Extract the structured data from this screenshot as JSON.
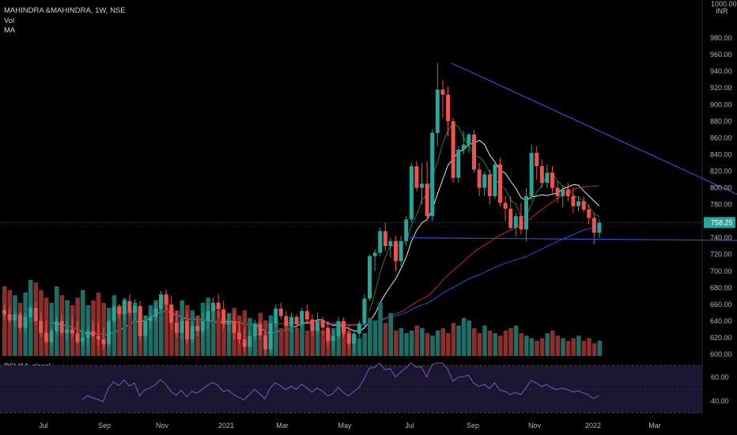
{
  "header": {
    "symbol_line": "MAHINDRA &MAHINDRA, 1W, NSE",
    "vol_label": "Vol",
    "ma_label": "MA"
  },
  "price_axis": {
    "unit": "INR",
    "top_label": "1000.00",
    "ticks": [
      980,
      960,
      940,
      920,
      900,
      880,
      860,
      840,
      820,
      800,
      780,
      760,
      740,
      720,
      700,
      680,
      660,
      640,
      620,
      600
    ],
    "current_price": 758.25,
    "current_label": "758.25"
  },
  "time_axis": {
    "labels": [
      "Jul",
      "Sep",
      "Nov",
      "2021",
      "Mar",
      "May",
      "Jul",
      "Sep",
      "Nov",
      "2022",
      "Mar"
    ]
  },
  "rsi": {
    "label": "RSI (14, close)",
    "levels": [
      "60.00",
      "40.00"
    ],
    "upper_band": 70,
    "lower_band": 30
  },
  "colors": {
    "up": "#26a69a",
    "down": "#ef5350",
    "vol_up": "#1f6e66",
    "vol_down": "#8b2f2e",
    "trendline": "#2f4fd8",
    "ma_white": "#e8e8e8",
    "ma_green": "#2e7d32",
    "ma_red": "#c62828",
    "ma_blue": "#2f4fd8",
    "rsi": "#7e57c2",
    "price_tag": "#26a69a"
  },
  "chart_data": {
    "type": "candlestick",
    "title": "MAHINDRA &MAHINDRA, 1W, NSE",
    "ylim": [
      600,
      1000
    ],
    "candles": [
      {
        "o": 653,
        "h": 660,
        "l": 642,
        "c": 648
      },
      {
        "o": 648,
        "h": 655,
        "l": 638,
        "c": 641
      },
      {
        "o": 641,
        "h": 652,
        "l": 634,
        "c": 648
      },
      {
        "o": 648,
        "h": 651,
        "l": 628,
        "c": 632
      },
      {
        "o": 632,
        "h": 650,
        "l": 625,
        "c": 645
      },
      {
        "o": 645,
        "h": 660,
        "l": 640,
        "c": 656
      },
      {
        "o": 656,
        "h": 663,
        "l": 636,
        "c": 640
      },
      {
        "o": 640,
        "h": 650,
        "l": 621,
        "c": 626
      },
      {
        "o": 626,
        "h": 640,
        "l": 611,
        "c": 615
      },
      {
        "o": 615,
        "h": 632,
        "l": 610,
        "c": 628
      },
      {
        "o": 628,
        "h": 646,
        "l": 625,
        "c": 640
      },
      {
        "o": 640,
        "h": 648,
        "l": 622,
        "c": 626
      },
      {
        "o": 626,
        "h": 640,
        "l": 618,
        "c": 630
      },
      {
        "o": 630,
        "h": 645,
        "l": 620,
        "c": 625
      },
      {
        "o": 625,
        "h": 640,
        "l": 612,
        "c": 615
      },
      {
        "o": 615,
        "h": 630,
        "l": 610,
        "c": 620
      },
      {
        "o": 620,
        "h": 633,
        "l": 610,
        "c": 628
      },
      {
        "o": 628,
        "h": 640,
        "l": 618,
        "c": 622
      },
      {
        "o": 622,
        "h": 638,
        "l": 610,
        "c": 618
      },
      {
        "o": 618,
        "h": 632,
        "l": 606,
        "c": 612
      },
      {
        "o": 612,
        "h": 642,
        "l": 608,
        "c": 640
      },
      {
        "o": 640,
        "h": 660,
        "l": 636,
        "c": 657
      },
      {
        "o": 657,
        "h": 660,
        "l": 642,
        "c": 648
      },
      {
        "o": 648,
        "h": 668,
        "l": 640,
        "c": 664
      },
      {
        "o": 664,
        "h": 672,
        "l": 646,
        "c": 650
      },
      {
        "o": 650,
        "h": 666,
        "l": 640,
        "c": 658
      },
      {
        "o": 658,
        "h": 664,
        "l": 616,
        "c": 622
      },
      {
        "o": 622,
        "h": 646,
        "l": 616,
        "c": 640
      },
      {
        "o": 640,
        "h": 650,
        "l": 630,
        "c": 645
      },
      {
        "o": 645,
        "h": 662,
        "l": 640,
        "c": 655
      },
      {
        "o": 655,
        "h": 676,
        "l": 650,
        "c": 672
      },
      {
        "o": 672,
        "h": 678,
        "l": 652,
        "c": 660
      },
      {
        "o": 660,
        "h": 670,
        "l": 630,
        "c": 638
      },
      {
        "o": 638,
        "h": 652,
        "l": 620,
        "c": 626
      },
      {
        "o": 626,
        "h": 646,
        "l": 618,
        "c": 640
      },
      {
        "o": 640,
        "h": 650,
        "l": 612,
        "c": 618
      },
      {
        "o": 618,
        "h": 640,
        "l": 614,
        "c": 634
      },
      {
        "o": 634,
        "h": 646,
        "l": 622,
        "c": 628
      },
      {
        "o": 628,
        "h": 650,
        "l": 620,
        "c": 640
      },
      {
        "o": 640,
        "h": 660,
        "l": 630,
        "c": 652
      },
      {
        "o": 652,
        "h": 668,
        "l": 640,
        "c": 662
      },
      {
        "o": 662,
        "h": 672,
        "l": 644,
        "c": 654
      },
      {
        "o": 654,
        "h": 664,
        "l": 630,
        "c": 636
      },
      {
        "o": 636,
        "h": 648,
        "l": 626,
        "c": 640
      },
      {
        "o": 640,
        "h": 652,
        "l": 618,
        "c": 626
      },
      {
        "o": 626,
        "h": 640,
        "l": 612,
        "c": 618
      },
      {
        "o": 618,
        "h": 632,
        "l": 604,
        "c": 609
      },
      {
        "o": 609,
        "h": 628,
        "l": 604,
        "c": 622
      },
      {
        "o": 622,
        "h": 642,
        "l": 616,
        "c": 636
      },
      {
        "o": 636,
        "h": 640,
        "l": 618,
        "c": 623
      },
      {
        "o": 623,
        "h": 630,
        "l": 600,
        "c": 606
      },
      {
        "o": 606,
        "h": 640,
        "l": 602,
        "c": 637
      },
      {
        "o": 637,
        "h": 660,
        "l": 632,
        "c": 655
      },
      {
        "o": 655,
        "h": 662,
        "l": 642,
        "c": 646
      },
      {
        "o": 646,
        "h": 652,
        "l": 628,
        "c": 634
      },
      {
        "o": 634,
        "h": 650,
        "l": 626,
        "c": 645
      },
      {
        "o": 645,
        "h": 648,
        "l": 630,
        "c": 636
      },
      {
        "o": 636,
        "h": 656,
        "l": 632,
        "c": 652
      },
      {
        "o": 652,
        "h": 660,
        "l": 638,
        "c": 642
      },
      {
        "o": 642,
        "h": 648,
        "l": 622,
        "c": 628
      },
      {
        "o": 628,
        "h": 650,
        "l": 624,
        "c": 640
      },
      {
        "o": 640,
        "h": 645,
        "l": 624,
        "c": 632
      },
      {
        "o": 632,
        "h": 640,
        "l": 610,
        "c": 616
      },
      {
        "o": 616,
        "h": 628,
        "l": 608,
        "c": 622
      },
      {
        "o": 622,
        "h": 645,
        "l": 618,
        "c": 640
      },
      {
        "o": 640,
        "h": 644,
        "l": 620,
        "c": 625
      },
      {
        "o": 625,
        "h": 636,
        "l": 608,
        "c": 613
      },
      {
        "o": 613,
        "h": 630,
        "l": 604,
        "c": 625
      },
      {
        "o": 625,
        "h": 640,
        "l": 620,
        "c": 637
      },
      {
        "o": 637,
        "h": 672,
        "l": 632,
        "c": 667
      },
      {
        "o": 667,
        "h": 720,
        "l": 664,
        "c": 718
      },
      {
        "o": 718,
        "h": 726,
        "l": 700,
        "c": 722
      },
      {
        "o": 722,
        "h": 752,
        "l": 718,
        "c": 748
      },
      {
        "o": 748,
        "h": 758,
        "l": 724,
        "c": 730
      },
      {
        "o": 730,
        "h": 740,
        "l": 716,
        "c": 736
      },
      {
        "o": 736,
        "h": 742,
        "l": 700,
        "c": 712
      },
      {
        "o": 712,
        "h": 742,
        "l": 706,
        "c": 736
      },
      {
        "o": 736,
        "h": 766,
        "l": 730,
        "c": 762
      },
      {
        "o": 762,
        "h": 830,
        "l": 758,
        "c": 826
      },
      {
        "o": 826,
        "h": 832,
        "l": 796,
        "c": 800
      },
      {
        "o": 800,
        "h": 830,
        "l": 780,
        "c": 805
      },
      {
        "o": 805,
        "h": 832,
        "l": 760,
        "c": 766
      },
      {
        "o": 766,
        "h": 870,
        "l": 760,
        "c": 866
      },
      {
        "o": 866,
        "h": 950,
        "l": 850,
        "c": 918
      },
      {
        "o": 918,
        "h": 930,
        "l": 884,
        "c": 912
      },
      {
        "o": 912,
        "h": 922,
        "l": 862,
        "c": 880
      },
      {
        "o": 880,
        "h": 884,
        "l": 806,
        "c": 812
      },
      {
        "o": 812,
        "h": 850,
        "l": 806,
        "c": 846
      },
      {
        "o": 846,
        "h": 868,
        "l": 840,
        "c": 852
      },
      {
        "o": 852,
        "h": 866,
        "l": 842,
        "c": 864
      },
      {
        "o": 864,
        "h": 870,
        "l": 818,
        "c": 822
      },
      {
        "o": 822,
        "h": 830,
        "l": 790,
        "c": 800
      },
      {
        "o": 800,
        "h": 820,
        "l": 790,
        "c": 816
      },
      {
        "o": 816,
        "h": 822,
        "l": 780,
        "c": 790
      },
      {
        "o": 790,
        "h": 832,
        "l": 786,
        "c": 828
      },
      {
        "o": 828,
        "h": 836,
        "l": 778,
        "c": 782
      },
      {
        "o": 782,
        "h": 790,
        "l": 760,
        "c": 775
      },
      {
        "o": 775,
        "h": 790,
        "l": 750,
        "c": 752
      },
      {
        "o": 752,
        "h": 770,
        "l": 742,
        "c": 766
      },
      {
        "o": 766,
        "h": 782,
        "l": 744,
        "c": 750
      },
      {
        "o": 750,
        "h": 800,
        "l": 736,
        "c": 790
      },
      {
        "o": 790,
        "h": 852,
        "l": 784,
        "c": 842
      },
      {
        "o": 842,
        "h": 850,
        "l": 810,
        "c": 826
      },
      {
        "o": 826,
        "h": 834,
        "l": 800,
        "c": 806
      },
      {
        "o": 806,
        "h": 828,
        "l": 800,
        "c": 818
      },
      {
        "o": 818,
        "h": 826,
        "l": 794,
        "c": 800
      },
      {
        "o": 800,
        "h": 808,
        "l": 782,
        "c": 790
      },
      {
        "o": 790,
        "h": 802,
        "l": 776,
        "c": 798
      },
      {
        "o": 798,
        "h": 806,
        "l": 784,
        "c": 790
      },
      {
        "o": 790,
        "h": 800,
        "l": 770,
        "c": 778
      },
      {
        "o": 778,
        "h": 790,
        "l": 772,
        "c": 784
      },
      {
        "o": 784,
        "h": 790,
        "l": 770,
        "c": 774
      },
      {
        "o": 774,
        "h": 780,
        "l": 756,
        "c": 764
      },
      {
        "o": 764,
        "h": 770,
        "l": 732,
        "c": 746
      },
      {
        "o": 746,
        "h": 762,
        "l": 740,
        "c": 758
      }
    ],
    "volume_values": [
      55,
      52,
      48,
      42,
      50,
      60,
      58,
      52,
      46,
      42,
      55,
      48,
      44,
      40,
      46,
      52,
      40,
      44,
      50,
      42,
      38,
      48,
      40,
      45,
      36,
      42,
      38,
      32,
      40,
      44,
      48,
      46,
      38,
      36,
      44,
      40,
      36,
      32,
      42,
      46,
      40,
      36,
      30,
      34,
      38,
      32,
      36,
      30,
      26,
      34,
      28,
      32,
      26,
      22,
      28,
      24,
      22,
      26,
      20,
      24,
      22,
      20,
      18,
      22,
      26,
      24,
      20,
      16,
      14,
      18,
      30,
      28,
      42,
      26,
      34,
      20,
      22,
      18,
      20,
      24,
      22,
      18,
      16,
      20,
      22,
      18,
      26,
      24,
      30,
      28,
      22,
      18,
      24,
      20,
      18,
      16,
      20,
      22,
      24,
      18,
      16,
      14,
      12,
      14,
      18,
      20,
      16,
      14,
      12,
      14,
      16,
      12,
      14,
      10,
      12,
      14
    ],
    "trendlines": [
      {
        "from": {
          "i": 86,
          "price": 950
        },
        "to": {
          "i": 152,
          "price": 738
        }
      },
      {
        "from": {
          "i": 78,
          "price": 740
        },
        "to": {
          "i": 152,
          "price": 736
        }
      }
    ]
  }
}
